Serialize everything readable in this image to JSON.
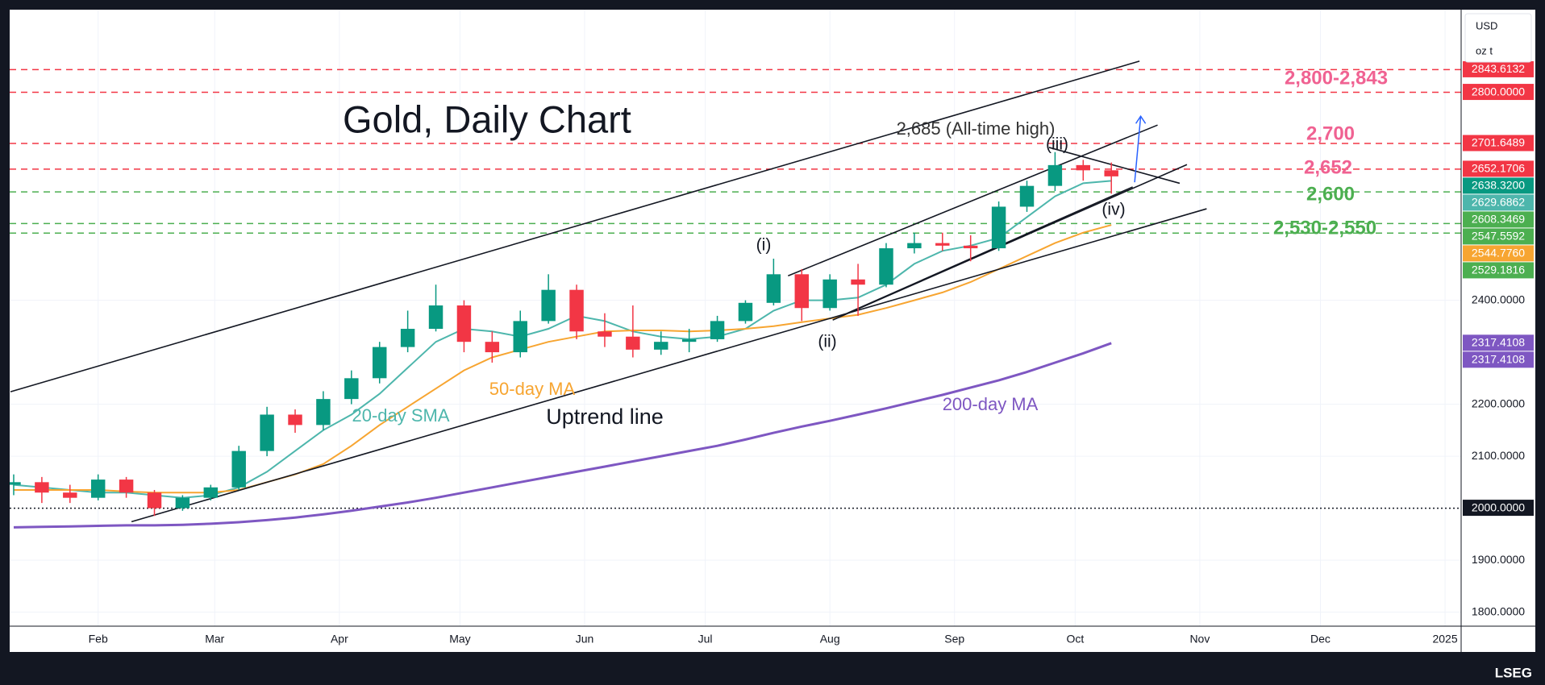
{
  "chart_data": {
    "type": "candlestick",
    "title": "Gold, Daily Chart",
    "currency": "USD",
    "unit": "oz t",
    "source": "LSEG",
    "x": [
      10,
      17,
      24,
      31,
      38,
      45,
      52,
      59,
      66,
      73,
      80,
      87,
      94,
      101,
      108,
      115,
      122,
      129,
      136,
      143,
      150,
      157,
      164,
      171,
      178,
      185,
      192,
      199,
      206,
      213,
      220,
      227,
      234,
      241,
      248,
      255,
      262,
      269,
      276,
      283
    ],
    "open": [
      2045,
      2050,
      2030,
      2020,
      2055,
      2030,
      2000,
      2020,
      2040,
      2110,
      2180,
      2160,
      2210,
      2250,
      2310,
      2345,
      2390,
      2320,
      2300,
      2360,
      2420,
      2340,
      2330,
      2305,
      2320,
      2325,
      2360,
      2395,
      2450,
      2385,
      2440,
      2430,
      2500,
      2510,
      2505,
      2500,
      2580,
      2620,
      2660,
      2650
    ],
    "high": [
      2065,
      2060,
      2045,
      2065,
      2060,
      2035,
      2025,
      2045,
      2120,
      2195,
      2190,
      2225,
      2265,
      2320,
      2380,
      2430,
      2400,
      2340,
      2380,
      2450,
      2430,
      2375,
      2390,
      2340,
      2345,
      2370,
      2400,
      2480,
      2460,
      2450,
      2470,
      2510,
      2530,
      2530,
      2525,
      2590,
      2630,
      2685,
      2670,
      2665
    ],
    "low": [
      2025,
      2010,
      2010,
      2015,
      2020,
      1985,
      1995,
      2015,
      2035,
      2100,
      2145,
      2150,
      2200,
      2240,
      2300,
      2340,
      2300,
      2280,
      2290,
      2355,
      2325,
      2310,
      2290,
      2295,
      2300,
      2320,
      2355,
      2390,
      2360,
      2380,
      2370,
      2425,
      2490,
      2495,
      2475,
      2495,
      2570,
      2610,
      2630,
      2605
    ],
    "close": [
      2050,
      2030,
      2020,
      2055,
      2030,
      2000,
      2020,
      2040,
      2110,
      2180,
      2160,
      2210,
      2250,
      2310,
      2345,
      2390,
      2320,
      2300,
      2360,
      2420,
      2340,
      2330,
      2305,
      2320,
      2325,
      2360,
      2395,
      2450,
      2385,
      2440,
      2430,
      2500,
      2510,
      2505,
      2500,
      2580,
      2620,
      2660,
      2650,
      2638.32
    ],
    "up_color": "#089981",
    "down_color": "#f23645",
    "xlim": [
      9,
      370
    ],
    "ylim": [
      1773,
      2959
    ],
    "xticks": [
      {
        "value": 31,
        "label": "Feb"
      },
      {
        "value": 60,
        "label": "Mar"
      },
      {
        "value": 91,
        "label": "Apr"
      },
      {
        "value": 121,
        "label": "May"
      },
      {
        "value": 152,
        "label": "Jun"
      },
      {
        "value": 182,
        "label": "Jul"
      },
      {
        "value": 213,
        "label": "Aug"
      },
      {
        "value": 244,
        "label": "Sep"
      },
      {
        "value": 274,
        "label": "Oct"
      },
      {
        "value": 305,
        "label": "Nov"
      },
      {
        "value": 335,
        "label": "Dec"
      },
      {
        "value": 366,
        "label": "2025"
      }
    ],
    "yticks": [
      {
        "value": 1800,
        "label": "1800.0000"
      },
      {
        "value": 1900,
        "label": "1900.0000"
      },
      {
        "value": 2100,
        "label": "2100.0000"
      },
      {
        "value": 2200,
        "label": "2200.0000"
      },
      {
        "value": 2400,
        "label": "2400.0000"
      }
    ],
    "grid": true,
    "series": [
      {
        "name": "20-day SMA",
        "color": "#4db6ac",
        "values": [
          2045,
          2040,
          2035,
          2030,
          2030,
          2025,
          2020,
          2025,
          2040,
          2070,
          2110,
          2150,
          2180,
          2220,
          2270,
          2320,
          2345,
          2340,
          2330,
          2345,
          2370,
          2360,
          2340,
          2330,
          2325,
          2330,
          2345,
          2380,
          2400,
          2400,
          2405,
          2430,
          2470,
          2495,
          2505,
          2520,
          2560,
          2600,
          2625,
          2629.6862
        ]
      },
      {
        "name": "50-day MA",
        "color": "#f7a531",
        "values": [
          2035,
          2035,
          2035,
          2035,
          2032,
          2030,
          2030,
          2030,
          2035,
          2050,
          2065,
          2085,
          2120,
          2160,
          2195,
          2230,
          2265,
          2290,
          2305,
          2320,
          2330,
          2340,
          2342,
          2342,
          2340,
          2342,
          2345,
          2350,
          2358,
          2365,
          2372,
          2385,
          2400,
          2415,
          2435,
          2460,
          2485,
          2510,
          2530,
          2544.776
        ]
      },
      {
        "name": "200-day MA",
        "color": "#7e57c2",
        "values": [
          1963,
          1964,
          1965,
          1966,
          1967,
          1967,
          1968,
          1970,
          1973,
          1977,
          1982,
          1988,
          1995,
          2003,
          2011,
          2020,
          2030,
          2040,
          2050,
          2060,
          2070,
          2080,
          2090,
          2100,
          2110,
          2120,
          2132,
          2145,
          2157,
          2168,
          2180,
          2192,
          2205,
          2218,
          2232,
          2246,
          2262,
          2280,
          2298,
          2317.4108
        ]
      }
    ],
    "trend_line_color": "#131722",
    "trend_lines": [
      {
        "x": [
          9.2,
          290
        ],
        "y": [
          2224,
          2860
        ]
      },
      {
        "x": [
          39.3,
          306.7
        ],
        "y": [
          1974,
          2576
        ]
      },
      {
        "x": [
          202.6,
          294.5
        ],
        "y": [
          2447,
          2737
        ]
      },
      {
        "x": [
          213.7,
          301.8
        ],
        "y": [
          2362,
          2661
        ]
      },
      {
        "x": [
          217.3,
          288.3
        ],
        "y": [
          2375,
          2618
        ]
      },
      {
        "x": [
          267.5,
          300
        ],
        "y": [
          2694,
          2625
        ]
      }
    ],
    "arrow": {
      "x": [
        288.8,
        290.3
      ],
      "y": [
        2627,
        2754
      ],
      "color": "#2962ff"
    },
    "price_labels": [
      {
        "value": 2843.6132,
        "color": "#f23645",
        "line": "dashed"
      },
      {
        "value": 2800,
        "label": "2800.0000",
        "color": "#f23645",
        "line": "dashed"
      },
      {
        "value": 2701.6489,
        "color": "#f23645",
        "line": "dashed"
      },
      {
        "value": 2652.1706,
        "color": "#f23645",
        "line": "dashed"
      },
      {
        "value": 2638.32,
        "label": "2638.3200",
        "color": "#089981"
      },
      {
        "value": 2629.6862,
        "color": "#4db6ac"
      },
      {
        "value": 2608.3469,
        "color": "#4caf50",
        "line": "dashed"
      },
      {
        "value": 2547.5592,
        "color": "#4caf50",
        "line": "dashed"
      },
      {
        "value": 2544.776,
        "label": "2544.7760",
        "color": "#f7a531"
      },
      {
        "value": 2529.1816,
        "color": "#4caf50",
        "line": "dashed"
      },
      {
        "value": 2317.4108,
        "color": "#7e57c2"
      },
      {
        "value": 2317.4108,
        "color": "#7e57c2"
      },
      {
        "value": 2000,
        "label": "2000.0000",
        "color": "#131722",
        "line": "dotted"
      }
    ],
    "annotations": [
      {
        "text": "2,800-2,843",
        "color": "#f06292"
      },
      {
        "text": "2,700",
        "color": "#f06292"
      },
      {
        "text": "2,652",
        "color": "#f06292"
      },
      {
        "text": "2,600",
        "color": "#4caf50"
      },
      {
        "text": "2,530-2,550",
        "color": "#4caf50"
      },
      {
        "text": "2,685 (All-time high)",
        "color": "#333333"
      },
      {
        "text": "(i)",
        "color": "#131722"
      },
      {
        "text": "(ii)",
        "color": "#131722"
      },
      {
        "text": "(iii)",
        "color": "#131722"
      },
      {
        "text": "(iv)",
        "color": "#131722"
      },
      {
        "text": "Uptrend line",
        "color": "#131722"
      }
    ]
  }
}
